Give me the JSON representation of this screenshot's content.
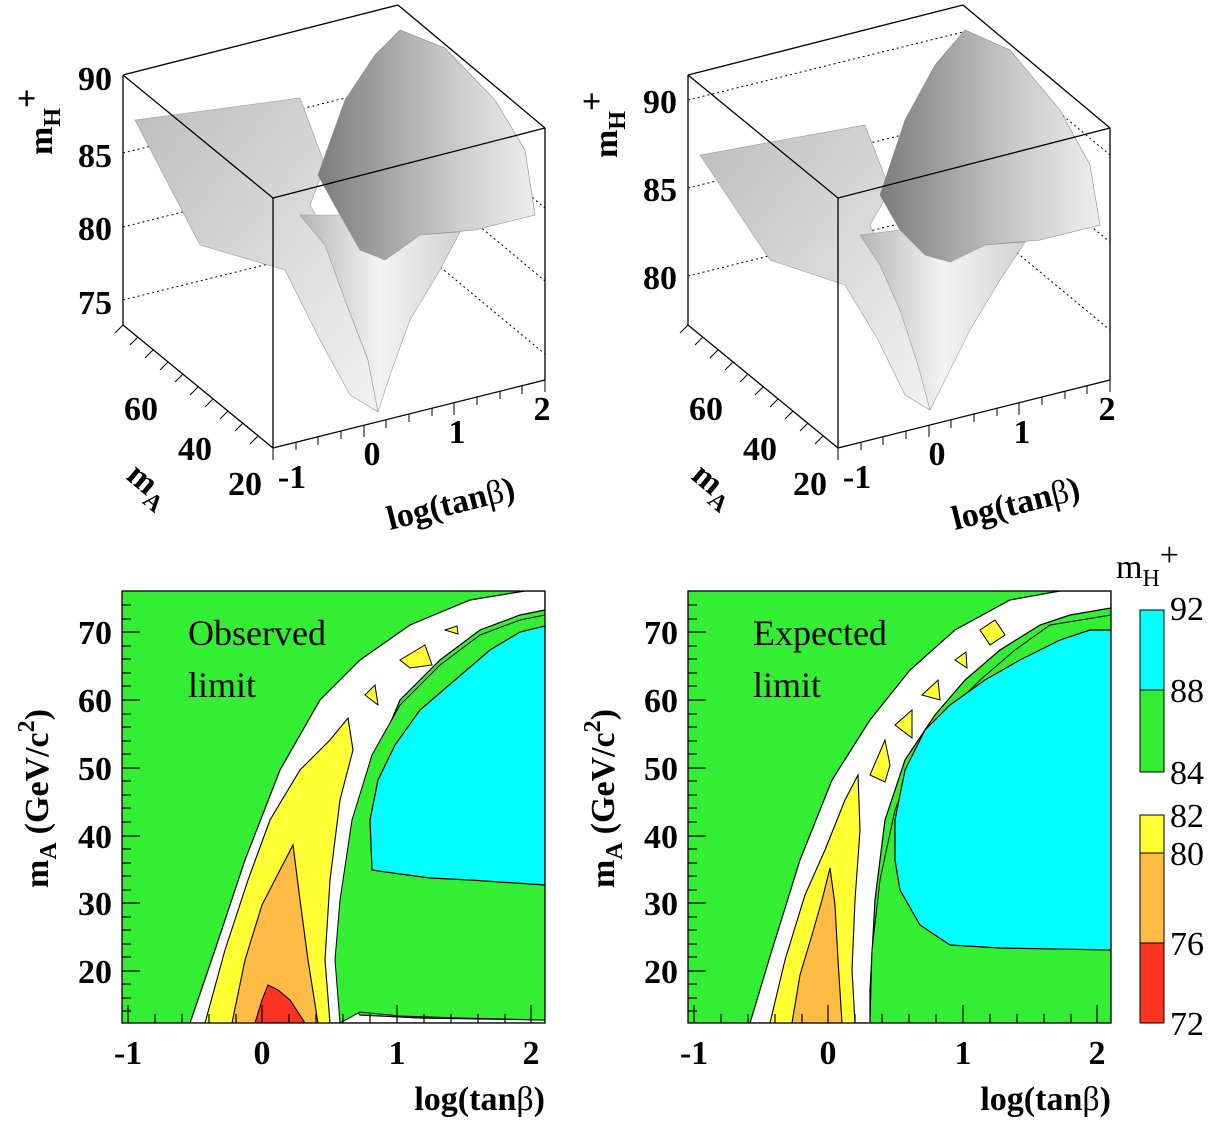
{
  "colors": {
    "cyan": "#00ffff",
    "green": "#33ee33",
    "yellow": "#ffff33",
    "orange": "#ffbb44",
    "red": "#ff3322",
    "surface_light": "#e8e8e8",
    "surface_dark": "#9a9a9a"
  },
  "surfaces": [
    {
      "type": "surface3d",
      "zlabel": "m",
      "zlabel_sub": "H",
      "zlabel_sup": "+",
      "ylabel": "m",
      "ylabel_sub": "A",
      "xlabel": "log(tan",
      "xlabel_greek": "β",
      "xlabel_end": ")",
      "x_ticks": [
        "-1",
        "0",
        "1",
        "2"
      ],
      "y_ticks": [
        "20",
        "40",
        "60"
      ],
      "z_ticks": [
        "90",
        "85",
        "80",
        "75"
      ]
    },
    {
      "type": "surface3d",
      "zlabel": "m",
      "zlabel_sub": "H",
      "zlabel_sup": "+",
      "ylabel": "m",
      "ylabel_sub": "A",
      "xlabel": "log(tan",
      "xlabel_greek": "β",
      "xlabel_end": ")",
      "x_ticks": [
        "-1",
        "0",
        "1",
        "2"
      ],
      "y_ticks": [
        "20",
        "40",
        "60"
      ],
      "z_ticks": [
        "90",
        "85",
        "80"
      ]
    }
  ],
  "chart_data": [
    {
      "type": "heatmap",
      "annotation_line1": "Observed",
      "annotation_line2": "limit",
      "xlabel": "log(tan",
      "xlabel_greek": "β",
      "xlabel_end": ")",
      "ylabel": "m",
      "ylabel_sub": "A",
      "ylabel_unit": "(GeV/c",
      "ylabel_unit_sup": "2",
      "ylabel_unit_end": ")",
      "xlim": [
        -1.1,
        2.05
      ],
      "ylim": [
        12,
        76
      ],
      "x_ticks": [
        "-1",
        "0",
        "1",
        "2"
      ],
      "y_ticks": [
        "20",
        "30",
        "40",
        "50",
        "60",
        "70"
      ],
      "regions": {
        "cyan_min_mA": 33,
        "cyan_min_logtanb": 0.78,
        "red_peak_mA": 18,
        "orange_peak_mA": 38,
        "yellow_peak_mA": 57
      }
    },
    {
      "type": "heatmap",
      "annotation_line1": "Expected",
      "annotation_line2": "limit",
      "xlabel": "log(tan",
      "xlabel_greek": "β",
      "xlabel_end": ")",
      "ylabel": "m",
      "ylabel_sub": "A",
      "ylabel_unit": "(GeV/c",
      "ylabel_unit_sup": "2",
      "ylabel_unit_end": ")",
      "xlim": [
        -1.1,
        2.05
      ],
      "ylim": [
        12,
        76
      ],
      "x_ticks": [
        "-1",
        "0",
        "1",
        "2"
      ],
      "y_ticks": [
        "20",
        "30",
        "40",
        "50",
        "60",
        "70"
      ],
      "regions": {
        "cyan_min_mA": 23,
        "cyan_min_logtanb": 0.45,
        "orange_peak_mA": 31,
        "yellow_peak_mA": 50
      }
    }
  ],
  "colorbar": {
    "title": "m",
    "title_sub": "H",
    "title_sup": "+",
    "upper_labels": [
      "92",
      "88",
      "84"
    ],
    "lower_labels": [
      "82",
      "80",
      "76",
      "72"
    ]
  }
}
